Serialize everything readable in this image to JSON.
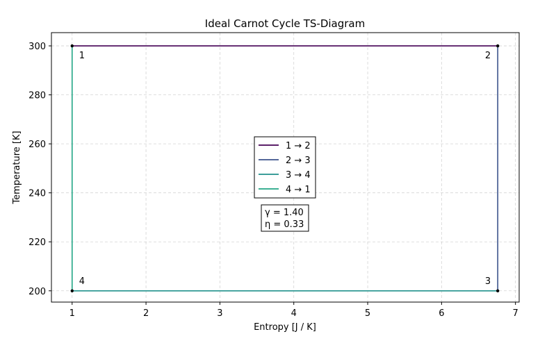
{
  "chart_data": {
    "type": "line",
    "title": "Ideal Carnot Cycle TS-Diagram",
    "xlabel": "Entropy [J / K]",
    "ylabel": "Temperature [K]",
    "xlim": [
      0.72,
      7.05
    ],
    "ylim": [
      195.4,
      305.4
    ],
    "xticks": [
      1,
      2,
      3,
      4,
      5,
      6,
      7
    ],
    "yticks": [
      200,
      220,
      240,
      260,
      280,
      300
    ],
    "xtick_labels": [
      "1",
      "2",
      "3",
      "4",
      "5",
      "6",
      "7"
    ],
    "ytick_labels": [
      "200",
      "220",
      "240",
      "260",
      "280",
      "300"
    ],
    "grid": true,
    "legend_placement": "center",
    "series": [
      {
        "name": "1 → 2",
        "color": "#440154",
        "x": [
          1.0,
          6.76
        ],
        "y": [
          300,
          300
        ]
      },
      {
        "name": "2 → 3",
        "color": "#3b528b",
        "x": [
          6.76,
          6.76
        ],
        "y": [
          300,
          200
        ]
      },
      {
        "name": "3 → 4",
        "color": "#21918c",
        "x": [
          6.76,
          1.0
        ],
        "y": [
          200,
          200
        ]
      },
      {
        "name": "4 → 1",
        "color": "#21a585",
        "x": [
          1.0,
          1.0
        ],
        "y": [
          200,
          300
        ]
      }
    ],
    "points": [
      {
        "label": "1",
        "x": 1.0,
        "y": 300
      },
      {
        "label": "2",
        "x": 6.76,
        "y": 300
      },
      {
        "label": "3",
        "x": 6.76,
        "y": 200
      },
      {
        "label": "4",
        "x": 1.0,
        "y": 200
      }
    ],
    "annotations": [
      "γ = 1.40",
      "η = 0.33"
    ]
  }
}
